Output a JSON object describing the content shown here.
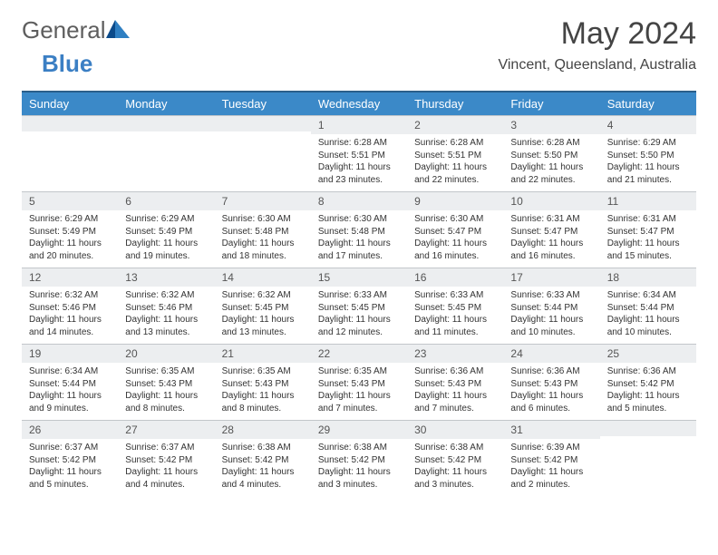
{
  "logo": {
    "general": "General",
    "blue": "Blue"
  },
  "title": "May 2024",
  "subtitle": "Vincent, Queensland, Australia",
  "colors": {
    "header_bg": "#3b89c8",
    "header_border": "#2b5f8a",
    "daynum_bg": "#eceef0",
    "daynum_border": "#c2c6ca",
    "text": "#333333",
    "title_color": "#444444",
    "logo_gray": "#5e5e5e",
    "logo_blue": "#3b7fc4",
    "page_bg": "#ffffff"
  },
  "weekdays": [
    "Sunday",
    "Monday",
    "Tuesday",
    "Wednesday",
    "Thursday",
    "Friday",
    "Saturday"
  ],
  "weeks": [
    [
      {
        "n": "",
        "l1": "",
        "l2": "",
        "l3": "",
        "l4": ""
      },
      {
        "n": "",
        "l1": "",
        "l2": "",
        "l3": "",
        "l4": ""
      },
      {
        "n": "",
        "l1": "",
        "l2": "",
        "l3": "",
        "l4": ""
      },
      {
        "n": "1",
        "l1": "Sunrise: 6:28 AM",
        "l2": "Sunset: 5:51 PM",
        "l3": "Daylight: 11 hours",
        "l4": "and 23 minutes."
      },
      {
        "n": "2",
        "l1": "Sunrise: 6:28 AM",
        "l2": "Sunset: 5:51 PM",
        "l3": "Daylight: 11 hours",
        "l4": "and 22 minutes."
      },
      {
        "n": "3",
        "l1": "Sunrise: 6:28 AM",
        "l2": "Sunset: 5:50 PM",
        "l3": "Daylight: 11 hours",
        "l4": "and 22 minutes."
      },
      {
        "n": "4",
        "l1": "Sunrise: 6:29 AM",
        "l2": "Sunset: 5:50 PM",
        "l3": "Daylight: 11 hours",
        "l4": "and 21 minutes."
      }
    ],
    [
      {
        "n": "5",
        "l1": "Sunrise: 6:29 AM",
        "l2": "Sunset: 5:49 PM",
        "l3": "Daylight: 11 hours",
        "l4": "and 20 minutes."
      },
      {
        "n": "6",
        "l1": "Sunrise: 6:29 AM",
        "l2": "Sunset: 5:49 PM",
        "l3": "Daylight: 11 hours",
        "l4": "and 19 minutes."
      },
      {
        "n": "7",
        "l1": "Sunrise: 6:30 AM",
        "l2": "Sunset: 5:48 PM",
        "l3": "Daylight: 11 hours",
        "l4": "and 18 minutes."
      },
      {
        "n": "8",
        "l1": "Sunrise: 6:30 AM",
        "l2": "Sunset: 5:48 PM",
        "l3": "Daylight: 11 hours",
        "l4": "and 17 minutes."
      },
      {
        "n": "9",
        "l1": "Sunrise: 6:30 AM",
        "l2": "Sunset: 5:47 PM",
        "l3": "Daylight: 11 hours",
        "l4": "and 16 minutes."
      },
      {
        "n": "10",
        "l1": "Sunrise: 6:31 AM",
        "l2": "Sunset: 5:47 PM",
        "l3": "Daylight: 11 hours",
        "l4": "and 16 minutes."
      },
      {
        "n": "11",
        "l1": "Sunrise: 6:31 AM",
        "l2": "Sunset: 5:47 PM",
        "l3": "Daylight: 11 hours",
        "l4": "and 15 minutes."
      }
    ],
    [
      {
        "n": "12",
        "l1": "Sunrise: 6:32 AM",
        "l2": "Sunset: 5:46 PM",
        "l3": "Daylight: 11 hours",
        "l4": "and 14 minutes."
      },
      {
        "n": "13",
        "l1": "Sunrise: 6:32 AM",
        "l2": "Sunset: 5:46 PM",
        "l3": "Daylight: 11 hours",
        "l4": "and 13 minutes."
      },
      {
        "n": "14",
        "l1": "Sunrise: 6:32 AM",
        "l2": "Sunset: 5:45 PM",
        "l3": "Daylight: 11 hours",
        "l4": "and 13 minutes."
      },
      {
        "n": "15",
        "l1": "Sunrise: 6:33 AM",
        "l2": "Sunset: 5:45 PM",
        "l3": "Daylight: 11 hours",
        "l4": "and 12 minutes."
      },
      {
        "n": "16",
        "l1": "Sunrise: 6:33 AM",
        "l2": "Sunset: 5:45 PM",
        "l3": "Daylight: 11 hours",
        "l4": "and 11 minutes."
      },
      {
        "n": "17",
        "l1": "Sunrise: 6:33 AM",
        "l2": "Sunset: 5:44 PM",
        "l3": "Daylight: 11 hours",
        "l4": "and 10 minutes."
      },
      {
        "n": "18",
        "l1": "Sunrise: 6:34 AM",
        "l2": "Sunset: 5:44 PM",
        "l3": "Daylight: 11 hours",
        "l4": "and 10 minutes."
      }
    ],
    [
      {
        "n": "19",
        "l1": "Sunrise: 6:34 AM",
        "l2": "Sunset: 5:44 PM",
        "l3": "Daylight: 11 hours",
        "l4": "and 9 minutes."
      },
      {
        "n": "20",
        "l1": "Sunrise: 6:35 AM",
        "l2": "Sunset: 5:43 PM",
        "l3": "Daylight: 11 hours",
        "l4": "and 8 minutes."
      },
      {
        "n": "21",
        "l1": "Sunrise: 6:35 AM",
        "l2": "Sunset: 5:43 PM",
        "l3": "Daylight: 11 hours",
        "l4": "and 8 minutes."
      },
      {
        "n": "22",
        "l1": "Sunrise: 6:35 AM",
        "l2": "Sunset: 5:43 PM",
        "l3": "Daylight: 11 hours",
        "l4": "and 7 minutes."
      },
      {
        "n": "23",
        "l1": "Sunrise: 6:36 AM",
        "l2": "Sunset: 5:43 PM",
        "l3": "Daylight: 11 hours",
        "l4": "and 7 minutes."
      },
      {
        "n": "24",
        "l1": "Sunrise: 6:36 AM",
        "l2": "Sunset: 5:43 PM",
        "l3": "Daylight: 11 hours",
        "l4": "and 6 minutes."
      },
      {
        "n": "25",
        "l1": "Sunrise: 6:36 AM",
        "l2": "Sunset: 5:42 PM",
        "l3": "Daylight: 11 hours",
        "l4": "and 5 minutes."
      }
    ],
    [
      {
        "n": "26",
        "l1": "Sunrise: 6:37 AM",
        "l2": "Sunset: 5:42 PM",
        "l3": "Daylight: 11 hours",
        "l4": "and 5 minutes."
      },
      {
        "n": "27",
        "l1": "Sunrise: 6:37 AM",
        "l2": "Sunset: 5:42 PM",
        "l3": "Daylight: 11 hours",
        "l4": "and 4 minutes."
      },
      {
        "n": "28",
        "l1": "Sunrise: 6:38 AM",
        "l2": "Sunset: 5:42 PM",
        "l3": "Daylight: 11 hours",
        "l4": "and 4 minutes."
      },
      {
        "n": "29",
        "l1": "Sunrise: 6:38 AM",
        "l2": "Sunset: 5:42 PM",
        "l3": "Daylight: 11 hours",
        "l4": "and 3 minutes."
      },
      {
        "n": "30",
        "l1": "Sunrise: 6:38 AM",
        "l2": "Sunset: 5:42 PM",
        "l3": "Daylight: 11 hours",
        "l4": "and 3 minutes."
      },
      {
        "n": "31",
        "l1": "Sunrise: 6:39 AM",
        "l2": "Sunset: 5:42 PM",
        "l3": "Daylight: 11 hours",
        "l4": "and 2 minutes."
      },
      {
        "n": "",
        "l1": "",
        "l2": "",
        "l3": "",
        "l4": ""
      }
    ]
  ]
}
